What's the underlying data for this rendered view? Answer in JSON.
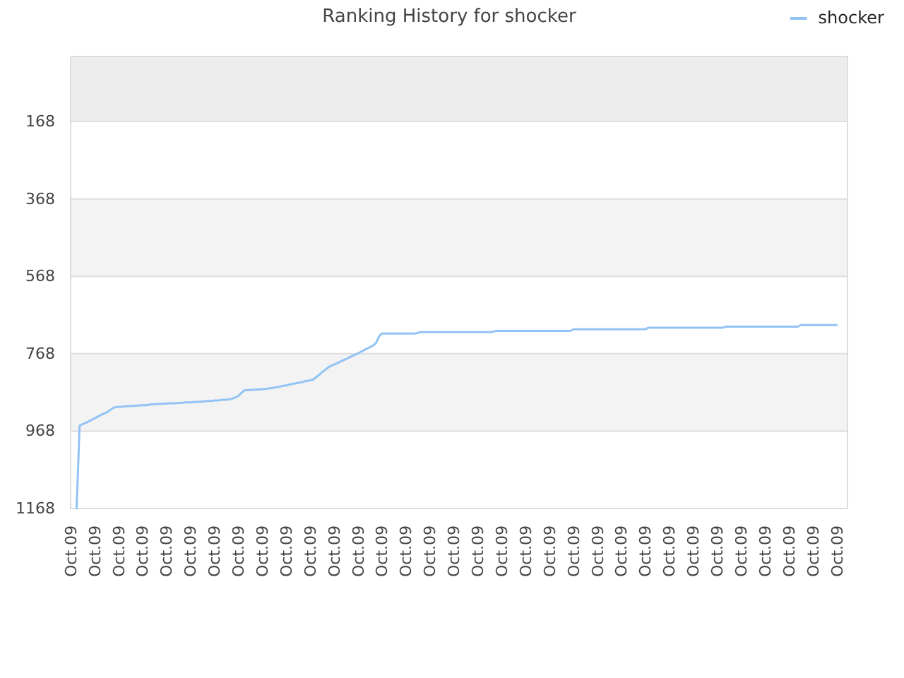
{
  "chart_data": {
    "type": "line",
    "title": "Ranking History for shocker",
    "categories": [
      "Oct.09",
      null,
      null,
      null,
      null,
      null,
      null,
      null,
      "Oct.09",
      null,
      null,
      null,
      null,
      null,
      null,
      null,
      "Oct.09",
      null,
      null,
      null,
      null,
      null,
      null,
      null,
      "Oct.09",
      null,
      null,
      null,
      null,
      null,
      null,
      null,
      "Oct.09",
      null,
      null,
      null,
      null,
      null,
      null,
      null,
      "Oct.09",
      null,
      null,
      null,
      null,
      null,
      null,
      null,
      "Oct.09",
      null,
      null,
      null,
      null,
      null,
      null,
      null,
      "Oct.09",
      null,
      null,
      null,
      null,
      null,
      null,
      null,
      "Oct.09",
      null,
      null,
      null,
      null,
      null,
      null,
      null,
      "Oct.09",
      null,
      null,
      null,
      null,
      null,
      null,
      null,
      "Oct.09",
      null,
      null,
      null,
      null,
      null,
      null,
      null,
      "Oct.09",
      null,
      null,
      null,
      null,
      null,
      null,
      null,
      "Oct.09",
      null,
      null,
      null,
      null,
      null,
      null,
      null,
      "Oct.09",
      null,
      null,
      null,
      null,
      null,
      null,
      null,
      "Oct.09",
      null,
      null,
      null,
      null,
      null,
      null,
      null,
      "Oct.09",
      null,
      null,
      null,
      null,
      null,
      null,
      null,
      "Oct.09",
      null,
      null,
      null,
      null,
      null,
      null,
      null,
      "Oct.09",
      null,
      null,
      null,
      null,
      null,
      null,
      null,
      "Oct.09",
      null,
      null,
      null,
      null,
      null,
      null,
      null,
      "Oct.09",
      null,
      null,
      null,
      null,
      null,
      null,
      null,
      "Oct.09",
      null,
      null,
      null,
      null,
      null,
      null,
      null,
      "Oct.09",
      null,
      null,
      null,
      null,
      null,
      null,
      null,
      "Oct.09",
      null,
      null,
      null,
      null,
      null,
      null,
      null,
      "Oct.09",
      null,
      null,
      null,
      null,
      null,
      null,
      null,
      "Oct.09",
      null,
      null,
      null,
      null,
      null,
      null,
      null,
      "Oct.09",
      null,
      null,
      null,
      null,
      null,
      null,
      null,
      "Oct.09",
      null,
      null,
      null,
      null,
      null,
      null,
      null,
      "Oct.09",
      null,
      null,
      null,
      null,
      null,
      null,
      null,
      "Oct.09",
      null,
      null,
      null,
      null,
      null,
      null,
      null,
      "Oct.09",
      null,
      null,
      null,
      null,
      null,
      null,
      null,
      "Oct.09",
      null,
      null,
      null,
      null,
      null,
      null,
      null,
      "Oct.09",
      null,
      null,
      null,
      null,
      null,
      null,
      null,
      "Oct.09"
    ],
    "series": [
      {
        "name": "shocker",
        "color": "#92c3f5",
        "values": [
          null,
          null,
          1168,
          954,
          950,
          947,
          943,
          939,
          935,
          931,
          927,
          923,
          920,
          915,
          909,
          906,
          905,
          905,
          904,
          904,
          903,
          903,
          902,
          902,
          901,
          901,
          900,
          899,
          899,
          898,
          898,
          897,
          897,
          896,
          896,
          896,
          895,
          895,
          894,
          894,
          894,
          893,
          893,
          892,
          892,
          891,
          890,
          890,
          889,
          889,
          888,
          887,
          887,
          886,
          884,
          881,
          877,
          870,
          863,
          862,
          862,
          861,
          861,
          860,
          860,
          859,
          858,
          857,
          856,
          854,
          853,
          851,
          850,
          848,
          846,
          845,
          843,
          842,
          840,
          838,
          837,
          835,
          829,
          823,
          816,
          810,
          804,
          799,
          796,
          793,
          789,
          785,
          782,
          778,
          774,
          771,
          767,
          763,
          759,
          755,
          751,
          747,
          741,
          724,
          716,
          716,
          716,
          716,
          716,
          716,
          716,
          716,
          716,
          716,
          716,
          716,
          714,
          712,
          712,
          712,
          712,
          712,
          712,
          712,
          712,
          712,
          712,
          712,
          712,
          712,
          712,
          712,
          712,
          712,
          712,
          712,
          712,
          712,
          712,
          712,
          712,
          712,
          709,
          709,
          709,
          709,
          709,
          709,
          709,
          709,
          709,
          709,
          709,
          709,
          709,
          709,
          709,
          709,
          709,
          709,
          709,
          709,
          709,
          709,
          709,
          709,
          709,
          709,
          705,
          705,
          705,
          705,
          705,
          705,
          705,
          705,
          705,
          705,
          705,
          705,
          705,
          705,
          705,
          705,
          705,
          705,
          705,
          705,
          705,
          705,
          705,
          705,
          705,
          701,
          701,
          701,
          701,
          701,
          701,
          701,
          701,
          701,
          701,
          701,
          701,
          701,
          701,
          701,
          701,
          701,
          701,
          701,
          701,
          701,
          701,
          701,
          701,
          701,
          701,
          698,
          698,
          698,
          698,
          698,
          698,
          698,
          698,
          698,
          698,
          698,
          698,
          698,
          698,
          698,
          698,
          698,
          698,
          698,
          698,
          698,
          698,
          698,
          698,
          698,
          694,
          694,
          694,
          694,
          694,
          694,
          694,
          694,
          694,
          694,
          694,
          694,
          694
        ]
      }
    ],
    "ylim": [
      1168,
      0
    ],
    "yticks": [
      168,
      368,
      568,
      768,
      968,
      1168
    ],
    "bands": [
      {
        "axis": "y",
        "from": 0,
        "to": 168,
        "color": "#ededed"
      },
      {
        "axis": "y",
        "from": 368,
        "to": 568,
        "color": "#f3f3f3"
      },
      {
        "axis": "y",
        "from": 768,
        "to": 968,
        "color": "#f3f3f3"
      }
    ],
    "grid": "y",
    "legend": "top right"
  }
}
